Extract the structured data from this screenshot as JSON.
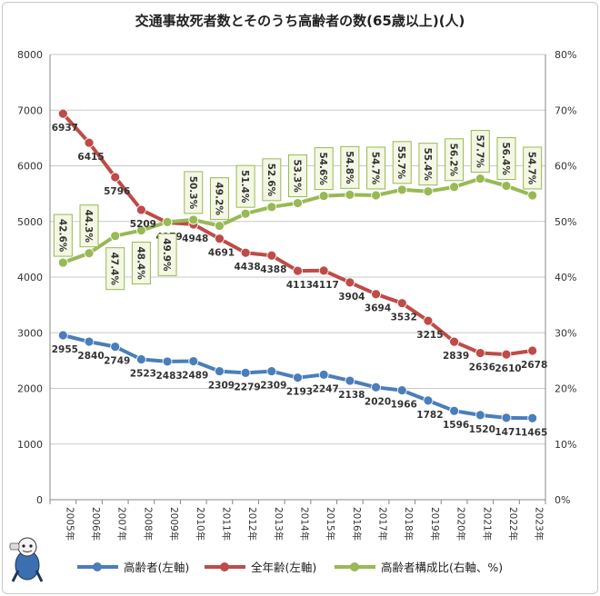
{
  "chart_data": {
    "type": "line",
    "title": "交通事故死者数とそのうち高齢者の数(65歳以上)(人)",
    "categories": [
      "2005年",
      "2006年",
      "2007年",
      "2008年",
      "2009年",
      "2010年",
      "2011年",
      "2012年",
      "2013年",
      "2014年",
      "2015年",
      "2016年",
      "2017年",
      "2018年",
      "2019年",
      "2020年",
      "2021年",
      "2022年",
      "2023年"
    ],
    "left_axis": {
      "min": 0,
      "max": 8000,
      "ticks": [
        "0",
        "1000",
        "2000",
        "3000",
        "4000",
        "5000",
        "6000",
        "7000",
        "8000"
      ]
    },
    "right_axis": {
      "min": 0,
      "max": 80,
      "ticks": [
        "0%",
        "10%",
        "20%",
        "30%",
        "40%",
        "50%",
        "60%",
        "70%",
        "80%"
      ]
    },
    "grid": true,
    "legend_position": "bottom",
    "series": [
      {
        "name": "高齢者(左軸)",
        "axis": "left",
        "color": "#4a7ebb",
        "values": [
          2955,
          2840,
          2749,
          2523,
          2483,
          2489,
          2309,
          2279,
          2309,
          2193,
          2247,
          2138,
          2020,
          1966,
          1782,
          1596,
          1520,
          1471,
          1465
        ],
        "labels": [
          "2955",
          "2840",
          "2749",
          "2523",
          "2483",
          "2489",
          "2309",
          "2279",
          "2309",
          "2193",
          "2247",
          "2138",
          "2020",
          "1966",
          "1782",
          "1596",
          "1520",
          "1471",
          "1465"
        ]
      },
      {
        "name": "全年齢(左軸)",
        "axis": "left",
        "color": "#be4b48",
        "values": [
          6937,
          6415,
          5796,
          5209,
          4979,
          4948,
          4691,
          4438,
          4388,
          4113,
          4117,
          3904,
          3694,
          3532,
          3215,
          2839,
          2636,
          2610,
          2678
        ],
        "labels": [
          "6937",
          "6415",
          "5796",
          "5209",
          "4979",
          "4948",
          "4691",
          "4438",
          "4388",
          "4113",
          "4117",
          "3904",
          "3694",
          "3532",
          "3215",
          "2839",
          "2636",
          "2610",
          "2678"
        ]
      },
      {
        "name": "高齢者構成比(右軸、%)",
        "axis": "right",
        "color": "#98b954",
        "values": [
          42.6,
          44.3,
          47.4,
          48.4,
          49.9,
          50.3,
          49.2,
          51.4,
          52.6,
          53.3,
          54.6,
          54.8,
          54.7,
          55.7,
          55.4,
          56.2,
          57.7,
          56.4,
          54.7
        ],
        "labels": [
          "42.6%",
          "44.3%",
          "47.4%",
          "48.4%",
          "49.9%",
          "50.3%",
          "49.2%",
          "51.4%",
          "52.6%",
          "53.3%",
          "54.6%",
          "54.8%",
          "54.7%",
          "55.7%",
          "55.4%",
          "56.2%",
          "57.7%",
          "56.4%",
          "54.7%"
        ]
      }
    ]
  }
}
